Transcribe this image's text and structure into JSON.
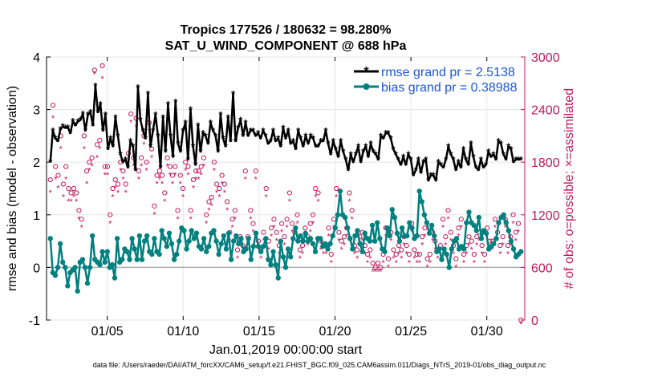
{
  "chart_data": {
    "type": "line",
    "title": "Tropics 177526 / 180632 = 98.280%",
    "subtitle": "SAT_U_WIND_COMPONENT @ 688 hPa",
    "xlabel": "Jan.01,2019 00:00:00 start",
    "ylabel": "rmse and bias (model - observation)",
    "ylabel_right": "# of obs: o=possible; ×=assimilated",
    "ylim": [
      -1,
      4
    ],
    "ylim_right": [
      0,
      3000
    ],
    "xlim": [
      1,
      32.5
    ],
    "x_tick_labels": [
      "01/05",
      "01/10",
      "01/15",
      "01/20",
      "01/25",
      "01/30"
    ],
    "x_tick_values": [
      5,
      10,
      15,
      20,
      25,
      30
    ],
    "y_tick_labels": [
      "-1",
      "0",
      "1",
      "2",
      "3",
      "4"
    ],
    "y_tick_values": [
      -1,
      0,
      1,
      2,
      3,
      4
    ],
    "y_right_tick_labels": [
      "0",
      "600",
      "1200",
      "1800",
      "2400",
      "3000"
    ],
    "y_right_tick_values": [
      0,
      600,
      1200,
      1800,
      2400,
      3000
    ],
    "legend": [
      {
        "label": "rmse grand pr = 2.5138",
        "color": "#000000"
      },
      {
        "label": "bias grand pr = 0.38988",
        "color": "#00807f"
      }
    ],
    "series": [
      {
        "name": "rmse",
        "color": "#000000",
        "values": [
          2.0,
          2.6,
          2.45,
          2.4,
          2.62,
          2.68,
          2.65,
          2.66,
          2.55,
          2.78,
          2.7,
          2.77,
          2.8,
          2.92,
          2.6,
          2.9,
          2.95,
          2.7,
          3.45,
          2.95,
          3.1,
          2.6,
          2.9,
          2.25,
          2.45,
          2.3,
          2.85,
          2.5,
          2.15,
          2.0,
          2.05,
          1.9,
          2.4,
          2.3,
          1.85,
          3.42,
          2.8,
          2.6,
          2.45,
          3.3,
          2.3,
          2.6,
          2.9,
          2.5,
          1.9,
          2.85,
          2.2,
          3.1,
          2.5,
          2.1,
          3.15,
          2.35,
          2.2,
          2.6,
          2.75,
          2.05,
          3.0,
          2.3,
          1.95,
          2.7,
          2.2,
          2.55,
          2.5,
          2.35,
          2.75,
          2.6,
          2.5,
          2.2,
          2.9,
          2.45,
          2.3,
          2.85,
          2.4,
          3.3,
          2.4,
          2.65,
          2.8,
          2.5,
          2.75,
          2.5,
          2.6,
          2.6,
          2.5,
          2.55,
          2.45,
          2.6,
          2.5,
          2.35,
          2.4,
          2.6,
          2.4,
          2.45,
          2.3,
          2.65,
          2.45,
          2.6,
          2.35,
          2.4,
          2.25,
          2.6,
          2.45,
          2.3,
          2.5,
          2.35,
          2.5,
          2.45,
          2.3,
          2.3,
          2.4,
          2.4,
          2.6,
          2.35,
          2.15,
          2.4,
          2.25,
          2.1,
          2.4,
          2.2,
          2.05,
          1.85,
          2.15,
          2.0,
          2.15,
          2.3,
          2.0,
          2.2,
          2.3,
          2.1,
          2.35,
          2.2,
          2.15,
          2.05,
          2.5,
          2.45,
          2.55,
          2.55,
          2.45,
          2.25,
          2.15,
          2.05,
          1.95,
          2.1,
          1.95,
          2.15,
          2.05,
          1.75,
          1.85,
          2.05,
          1.8,
          2.0,
          2.05,
          1.65,
          1.75,
          1.75,
          1.65,
          2.0,
          1.95,
          1.9,
          2.05,
          2.3,
          2.15,
          2.05,
          1.85,
          2.0,
          1.9,
          2.25,
          2.05,
          1.95,
          2.35,
          2.1,
          1.9,
          1.85,
          2.05,
          1.9,
          1.95,
          2.2,
          2.1,
          2.15,
          2.05,
          2.4,
          2.35,
          2.15,
          2.05,
          2.3,
          2.25,
          2.0,
          2.05,
          2.05,
          2.05
        ]
      },
      {
        "name": "bias",
        "color": "#00807f",
        "values": [
          0.55,
          -0.1,
          -0.15,
          0.0,
          0.45,
          0.1,
          0.0,
          -0.35,
          -0.1,
          -0.05,
          0.0,
          -0.45,
          0.1,
          0.15,
          0.0,
          -0.3,
          0.0,
          0.6,
          0.15,
          0.1,
          0.05,
          0.3,
          0.1,
          0.3,
          0.0,
          0.05,
          -0.2,
          0.55,
          0.1,
          0.15,
          0.35,
          0.3,
          0.15,
          0.55,
          0.35,
          0.15,
          0.6,
          0.15,
          0.5,
          0.6,
          0.3,
          0.25,
          0.55,
          0.3,
          0.25,
          0.7,
          0.55,
          0.4,
          0.65,
          0.45,
          0.15,
          0.25,
          0.5,
          0.75,
          0.7,
          0.35,
          0.5,
          0.7,
          0.55,
          0.65,
          0.4,
          0.35,
          0.55,
          0.3,
          0.4,
          0.65,
          0.7,
          0.5,
          0.25,
          0.45,
          0.6,
          0.35,
          0.65,
          0.15,
          0.5,
          0.6,
          0.45,
          0.55,
          0.3,
          0.35,
          0.55,
          0.15,
          0.4,
          0.65,
          0.4,
          0.3,
          0.4,
          0.55,
          0.15,
          0.05,
          0.3,
          0.05,
          -0.2,
          0.5,
          0.2,
          0.0,
          0.35,
          0.2,
          0.55,
          0.75,
          0.5,
          0.6,
          0.5,
          0.65,
          0.5,
          0.55,
          0.45,
          0.3,
          0.55,
          0.55,
          0.4,
          0.45,
          0.35,
          0.45,
          0.6,
          0.75,
          1.0,
          1.45,
          1.0,
          0.95,
          0.75,
          0.55,
          0.35,
          0.6,
          0.7,
          0.45,
          0.3,
          0.65,
          0.55,
          0.5,
          0.8,
          0.5,
          0.85,
          0.55,
          0.35,
          0.3,
          0.75,
          0.6,
          1.1,
          0.95,
          0.65,
          0.5,
          0.75,
          0.6,
          0.6,
          0.85,
          0.75,
          0.55,
          0.6,
          1.45,
          1.25,
          1.0,
          0.85,
          0.65,
          0.8,
          0.6,
          0.3,
          0.35,
          0.15,
          0.35,
          0.25,
          0.0,
          0.35,
          0.5,
          0.55,
          0.35,
          0.4,
          0.35,
          0.85,
          1.05,
          0.85,
          0.8,
          0.7,
          0.95,
          0.55,
          0.7,
          0.65,
          0.35,
          0.4,
          0.45,
          0.55,
          0.85,
          0.95,
          1.0,
          0.85,
          0.7,
          0.5,
          0.35,
          0.2,
          0.25,
          0.3
        ]
      },
      {
        "name": "possible obs (o)",
        "axis": "right",
        "color": "#c2185b",
        "values": [
          1600,
          2450,
          1750,
          1650,
          2100,
          1550,
          1750,
          1500,
          1450,
          1500,
          1450,
          1250,
          1150,
          2100,
          1700,
          1800,
          1850,
          2850,
          2000,
          2050,
          2900,
          1750,
          1750,
          1200,
          1500,
          1600,
          1550,
          1800,
          1700,
          1550,
          1900,
          2350,
          1850,
          2300,
          1700,
          1850,
          2100,
          1800,
          2250,
          1950,
          1300,
          1650,
          1700,
          1650,
          1450,
          1850,
          1750,
          1650,
          1750,
          1250,
          1650,
          1500,
          1800,
          1750,
          1250,
          1600,
          1700,
          1700,
          1750,
          1850,
          1200,
          1350,
          1400,
          1800,
          1550,
          1500,
          1650,
          1550,
          1350,
          1000,
          1150,
          1250,
          800,
          950,
          850,
          1700,
          950,
          1250,
          1100,
          1700,
          900,
          800,
          1000,
          1500,
          900,
          1050,
          1150,
          1000,
          850,
          1100,
          950,
          1150,
          1450,
          1100,
          1000,
          1200,
          800,
          850,
          1050,
          950,
          1100,
          1200,
          1500,
          1450,
          900,
          850,
          850,
          1050,
          750,
          1150,
          1500,
          1000,
          900,
          950,
          1050,
          1450,
          1250,
          850,
          800,
          950,
          1000,
          850,
          750,
          800,
          650,
          600,
          650,
          600,
          750,
          1050,
          700,
          1000,
          800,
          750,
          850,
          800,
          950,
          850,
          750,
          1100,
          800,
          750,
          750,
          950,
          1050,
          700,
          750,
          1000,
          900,
          800,
          850,
          1150,
          950,
          1250,
          1000,
          850,
          700,
          1050,
          1150,
          750,
          850,
          950,
          900,
          750,
          950,
          1000,
          850,
          750,
          1050,
          900,
          900,
          1150,
          1000,
          850,
          950,
          1150,
          850,
          950,
          1200,
          1000,
          1100,
          0
        ]
      },
      {
        "name": "assimilated obs (×)",
        "axis": "right",
        "color": "#c2185b",
        "values": [
          1500,
          2350,
          1650,
          1550,
          2000,
          1450,
          1650,
          1400,
          1400,
          1450,
          1400,
          1200,
          1100,
          2000,
          1600,
          1750,
          1800,
          2850,
          1900,
          2000,
          2800,
          1700,
          1700,
          1150,
          1450,
          1550,
          1500,
          1750,
          1650,
          1500,
          1850,
          2300,
          1800,
          2250,
          1650,
          1800,
          2050,
          1750,
          2200,
          1900,
          1250,
          1600,
          1650,
          1600,
          1400,
          1800,
          1700,
          1600,
          1700,
          1200,
          1600,
          1450,
          1750,
          1700,
          1200,
          1550,
          1650,
          1650,
          1700,
          1800,
          1150,
          1300,
          1350,
          1750,
          1500,
          1450,
          1600,
          1500,
          1300,
          950,
          1100,
          1200,
          750,
          900,
          800,
          1650,
          900,
          1200,
          1050,
          1650,
          850,
          750,
          950,
          1450,
          850,
          1000,
          1100,
          950,
          800,
          1050,
          900,
          1100,
          1400,
          1050,
          950,
          1150,
          750,
          800,
          1000,
          900,
          1050,
          1150,
          1450,
          1400,
          850,
          800,
          800,
          1000,
          700,
          1100,
          1450,
          950,
          850,
          900,
          1000,
          1400,
          1200,
          800,
          750,
          900,
          950,
          800,
          700,
          750,
          600,
          600,
          600,
          600,
          700,
          1000,
          650,
          950,
          750,
          700,
          800,
          750,
          900,
          800,
          700,
          1050,
          750,
          700,
          700,
          900,
          1000,
          650,
          700,
          950,
          850,
          750,
          800,
          1100,
          900,
          1200,
          950,
          800,
          650,
          1000,
          1100,
          700,
          800,
          900,
          850,
          700,
          900,
          950,
          800,
          700,
          1000,
          850,
          850,
          1100,
          950,
          800,
          900,
          1100,
          800,
          900,
          1150,
          950,
          1050,
          0
        ]
      }
    ]
  },
  "footer": "data file: /Users/raeder/DAI/ATM_forcXX/CAM6_setup/f.e21.FHIST_BGC.f09_025.CAM6assim.011/Diags_NTrS_2019-01/obs_diag_output.nc"
}
